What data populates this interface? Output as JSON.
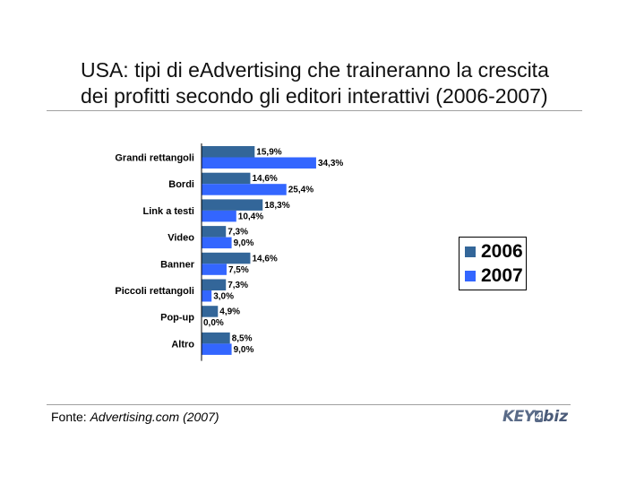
{
  "title_line1": "USA: tipi di eAdvertising che traineranno la crescita",
  "title_line2": "dei profitti secondo gli editori interattivi (2006-2007)",
  "source_prefix": "Fonte: ",
  "source_name": "Advertising.com (2007)",
  "logo": {
    "part1": "KEY",
    "part2": "4",
    "part3": "biz"
  },
  "colors": {
    "2006": "#336699",
    "2007": "#3366ff"
  },
  "chart_data": {
    "type": "bar",
    "orientation": "horizontal",
    "categories": [
      "Grandi rettangoli",
      "Bordi",
      "Link a testi",
      "Video",
      "Banner",
      "Piccoli rettangoli",
      "Pop-up",
      "Altro"
    ],
    "series": [
      {
        "name": "2006",
        "values": [
          15.9,
          14.6,
          18.3,
          7.3,
          14.6,
          7.3,
          4.9,
          8.5
        ],
        "labels": [
          "15,9%",
          "14,6%",
          "18,3%",
          "7,3%",
          "14,6%",
          "7,3%",
          "4,9%",
          "8,5%"
        ]
      },
      {
        "name": "2007",
        "values": [
          34.3,
          25.4,
          10.4,
          9.0,
          7.5,
          3.0,
          0.0,
          9.0
        ],
        "labels": [
          "34,3%",
          "25,4%",
          "10,4%",
          "9,0%",
          "7,5%",
          "3,0%",
          "0,0%",
          "9,0%"
        ]
      }
    ],
    "legend": "right"
  }
}
